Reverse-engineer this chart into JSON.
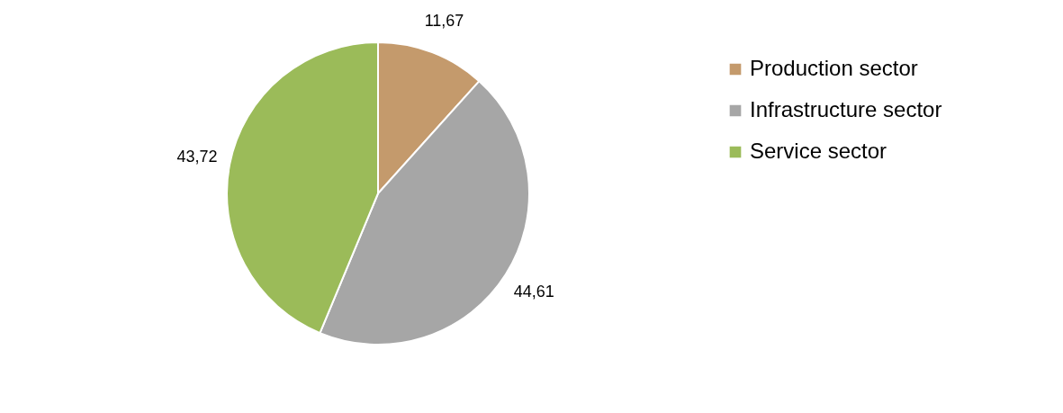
{
  "chart_data": {
    "type": "pie",
    "categories": [
      "Production sector",
      "Infrastructure sector",
      "Service sector"
    ],
    "values": [
      11.67,
      44.61,
      43.72
    ],
    "colors": [
      "#c49a6c",
      "#a6a6a6",
      "#9bbb59"
    ],
    "value_labels": [
      "11,67",
      "44,61",
      "43,72"
    ],
    "legend": "right"
  }
}
